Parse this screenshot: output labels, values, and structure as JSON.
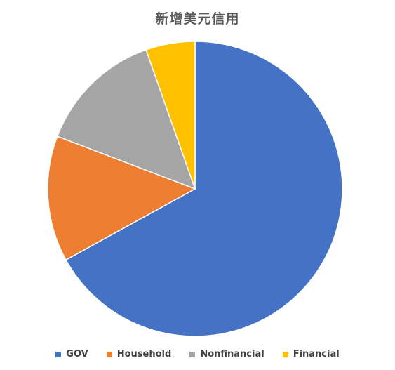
{
  "chart_data": {
    "type": "pie",
    "title": "新增美元信用",
    "categories": [
      "GOV",
      "Household",
      "Nonfinancial",
      "Financial"
    ],
    "values": [
      67,
      13.8,
      13.8,
      5.4
    ],
    "colors": [
      "#4472C4",
      "#ED7D31",
      "#A5A5A5",
      "#FFC000"
    ],
    "start_angle_deg": 0,
    "direction": "clockwise",
    "legend": "bottom"
  }
}
